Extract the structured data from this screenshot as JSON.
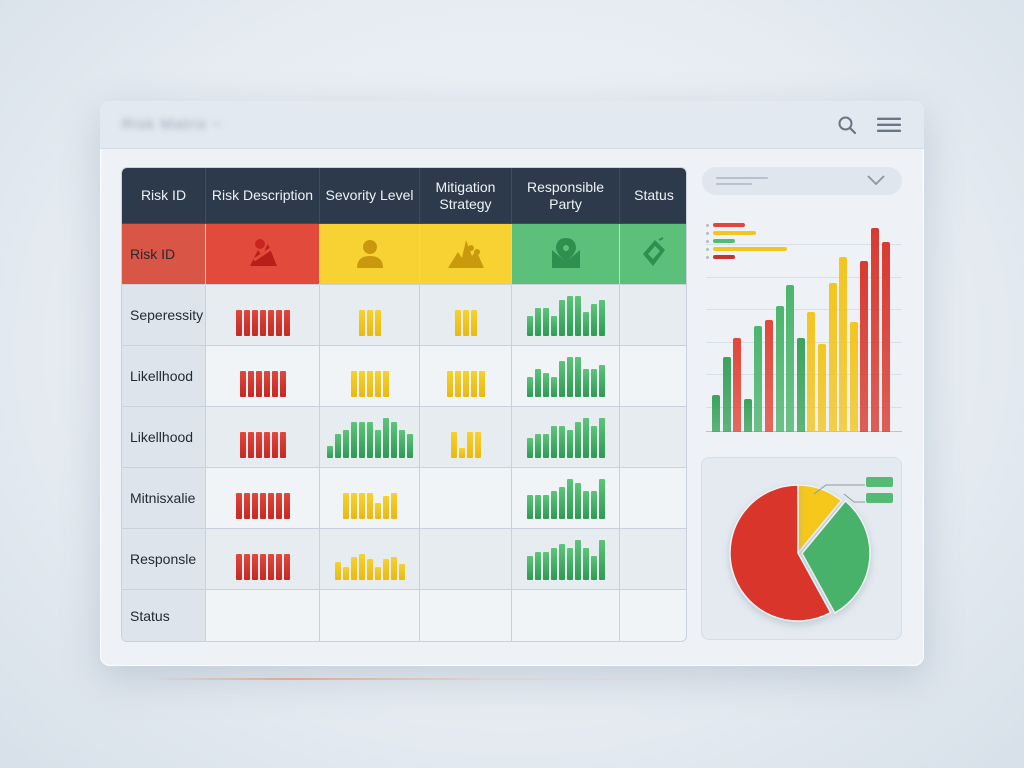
{
  "window": {
    "title": "Risk Matrix ~",
    "icons": {
      "search": "search-icon",
      "menu": "hamburger-menu-icon"
    }
  },
  "table": {
    "headers": [
      "Risk ID",
      "Risk Description",
      "Sevority Level",
      "Mitigation Strategy",
      "Responsible Party",
      "Status"
    ],
    "icon_row": {
      "label": "Risk ID",
      "icons": [
        "risk-description-icon",
        "person-icon",
        "mountain-strategy-icon",
        "shield-location-icon",
        "document-check-icon"
      ],
      "colors": [
        "#e24b3b",
        "#f8d233",
        "#f8d233",
        "#5cbf7a",
        "#5cbf7a"
      ]
    },
    "rows": [
      {
        "label": "Seperessity",
        "cells": [
          {
            "color": "red",
            "values": [
              10,
              10,
              10,
              10,
              10,
              10,
              10
            ]
          },
          {
            "color": "yellow",
            "values": [
              10,
              10,
              10
            ]
          },
          {
            "color": "yellow",
            "values": [
              10,
              10,
              10
            ]
          },
          {
            "color": "green",
            "values": [
              5,
              7,
              7,
              5,
              9,
              10,
              10,
              6,
              8,
              9
            ]
          },
          null
        ]
      },
      {
        "label": "Likellhood",
        "cells": [
          {
            "color": "red",
            "values": [
              10,
              10,
              10,
              10,
              10,
              10
            ]
          },
          {
            "color": "yellow",
            "values": [
              10,
              10,
              10,
              10,
              10
            ]
          },
          {
            "color": "yellow",
            "values": [
              10,
              10,
              10,
              10,
              10
            ]
          },
          {
            "color": "green",
            "values": [
              5,
              7,
              6,
              5,
              9,
              10,
              10,
              7,
              7,
              8
            ]
          },
          null
        ]
      },
      {
        "label": "Likellhood",
        "cells": [
          {
            "color": "red",
            "values": [
              10,
              10,
              10,
              10,
              10,
              10
            ]
          },
          {
            "color": "green",
            "values": [
              3,
              6,
              7,
              9,
              9,
              9,
              7,
              10,
              9,
              7,
              6
            ]
          },
          {
            "color": "yellow",
            "values": [
              10,
              4,
              10,
              10
            ]
          },
          {
            "color": "green",
            "values": [
              5,
              6,
              6,
              8,
              8,
              7,
              9,
              10,
              8,
              10
            ]
          },
          null
        ]
      },
      {
        "label": "Mitnisxalie",
        "cells": [
          {
            "color": "red",
            "values": [
              10,
              10,
              10,
              10,
              10,
              10,
              10
            ]
          },
          {
            "color": "yellow",
            "values": [
              10,
              10,
              10,
              10,
              6,
              9,
              10
            ]
          },
          null,
          {
            "color": "green",
            "values": [
              6,
              6,
              6,
              7,
              8,
              10,
              9,
              7,
              7,
              10
            ]
          },
          null
        ]
      },
      {
        "label": "Responsle",
        "cells": [
          {
            "color": "red",
            "values": [
              10,
              10,
              10,
              10,
              10,
              10,
              10
            ]
          },
          {
            "color": "yellow",
            "values": [
              7,
              5,
              9,
              10,
              8,
              5,
              8,
              9,
              6
            ]
          },
          null,
          {
            "color": "green",
            "values": [
              6,
              7,
              7,
              8,
              9,
              8,
              10,
              8,
              6,
              10
            ]
          },
          null
        ]
      },
      {
        "label": "Status",
        "cells": [
          null,
          null,
          null,
          null,
          null
        ]
      }
    ]
  },
  "sidebar": {
    "dropdown": {
      "icon": "chevron-down-icon"
    }
  },
  "chart_data": [
    {
      "type": "bar",
      "title": "",
      "xlabel": "",
      "ylabel": "",
      "grid": true,
      "legend_position": "top-left",
      "legend": [
        {
          "color": "#e2463b",
          "length": 32
        },
        {
          "color": "#f3c51f",
          "length": 43
        },
        {
          "color": "#55bb74",
          "length": 22
        },
        {
          "color": "#f3c51f",
          "length": 74
        },
        {
          "color": "#c7322b",
          "length": 22
        }
      ],
      "bars": [
        {
          "color": "#3aa35c",
          "value": 18
        },
        {
          "color": "#3aa35c",
          "value": 37
        },
        {
          "color": "#e2463b",
          "value": 46
        },
        {
          "color": "#3aa35c",
          "value": 16
        },
        {
          "color": "#4cb56d",
          "value": 52
        },
        {
          "color": "#e2463b",
          "value": 55
        },
        {
          "color": "#4cb56d",
          "value": 62
        },
        {
          "color": "#4cb56d",
          "value": 72
        },
        {
          "color": "#3aa35c",
          "value": 46
        },
        {
          "color": "#f3c51f",
          "value": 59
        },
        {
          "color": "#f3c51f",
          "value": 43
        },
        {
          "color": "#f3c51f",
          "value": 73
        },
        {
          "color": "#f3c51f",
          "value": 86
        },
        {
          "color": "#f3c51f",
          "value": 54
        },
        {
          "color": "#d93a2f",
          "value": 84
        },
        {
          "color": "#d93a2f",
          "value": 100
        },
        {
          "color": "#d93a2f",
          "value": 93
        }
      ],
      "ylim": [
        0,
        100
      ]
    },
    {
      "type": "pie",
      "title": "",
      "slices": [
        {
          "label": "Yellow",
          "value": 11,
          "color": "#f6c81d"
        },
        {
          "label": "Green",
          "value": 31,
          "color": "#49b26a"
        },
        {
          "label": "Red",
          "value": 58,
          "color": "#d9362c"
        }
      ],
      "legend": [
        "",
        ""
      ]
    }
  ]
}
